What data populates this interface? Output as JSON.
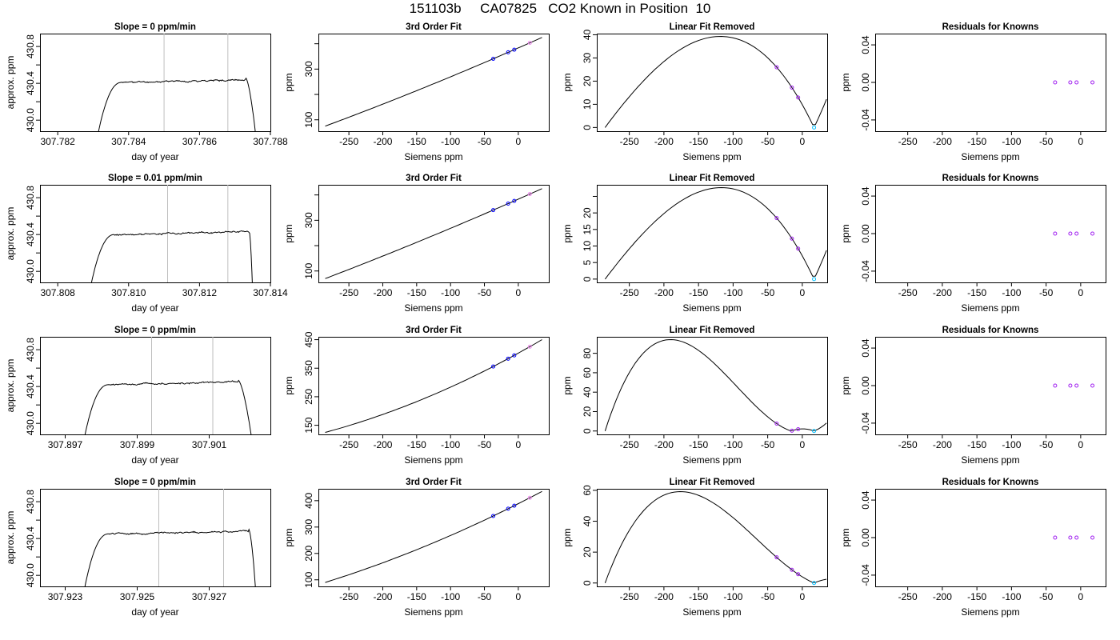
{
  "figure_title": "151103b     CA07825   CO2 Known in Position  10",
  "colors": {
    "axis": "#000000",
    "curve": "#000000",
    "marker_line": "#bebebe",
    "point_blue": "#0000ff",
    "point_purple": "#a020f0",
    "point_violet": "#ee82ee",
    "point_cyan": "#00bfff"
  },
  "chart_data": [
    {
      "type": "line",
      "row": 1,
      "title": "Slope =  0  ppm/min",
      "xlabel": "day of year",
      "ylabel": "approx. ppm",
      "xlim": [
        307.7815,
        307.788
      ],
      "ylim": [
        429.88,
        430.94
      ],
      "xticks": [
        307.782,
        307.784,
        307.786,
        307.788
      ],
      "xtick_labels": [
        "307.782",
        "307.784",
        "307.786",
        "307.788"
      ],
      "yticks": [
        430.0,
        430.2,
        430.4,
        430.6,
        430.8
      ],
      "ytick_labels": [
        "430.0",
        "",
        "430.4",
        "",
        "430.8"
      ],
      "trace": {
        "start": 307.7831,
        "end": 307.7876,
        "rise_end": 307.7838,
        "fall_start": 307.7873,
        "plateau": 430.41,
        "top": 430.46,
        "noise": 0.012,
        "seed": 11
      },
      "vlines": [
        307.785,
        307.7868
      ]
    },
    {
      "type": "line",
      "row": 1,
      "title": "3rd Order Fit",
      "xlabel": "Siemens ppm",
      "ylabel": "ppm",
      "xlim": [
        -295,
        45
      ],
      "ylim": [
        55,
        440
      ],
      "xticks": [
        -250,
        -200,
        -150,
        -100,
        -50,
        0
      ],
      "xtick_labels": [
        "-250",
        "-200",
        "-150",
        "-100",
        "-50",
        "0"
      ],
      "yticks": [
        100,
        200,
        300,
        400
      ],
      "ytick_labels": [
        "100",
        "",
        "300",
        ""
      ],
      "fit": {
        "x0": -285,
        "x1": 35,
        "y0": 75,
        "y1": 425,
        "curv": -8
      },
      "points": [
        {
          "x": -37,
          "color": "point_blue"
        },
        {
          "x": -15,
          "color": "point_blue"
        },
        {
          "x": -6,
          "color": "point_blue"
        },
        {
          "x": 17,
          "color": "point_violet"
        }
      ]
    },
    {
      "type": "line",
      "row": 1,
      "title": "Linear Fit Removed",
      "xlabel": "Siemens ppm",
      "ylabel": "ppm",
      "xlim": [
        -297,
        36
      ],
      "ylim": [
        -1.6,
        40.5
      ],
      "xticks": [
        -250,
        -200,
        -150,
        -100,
        -50,
        0
      ],
      "xtick_labels": [
        "-250",
        "-200",
        "-150",
        "-100",
        "-50",
        "0"
      ],
      "yticks": [
        0,
        10,
        20,
        30,
        40
      ],
      "ytick_labels": [
        "0",
        "10",
        "20",
        "30",
        "40"
      ],
      "resid": {
        "a": -0.00012,
        "b": -0.1,
        "x0": -285,
        "x1": 35,
        "rx0": -285,
        "rx1": 17
      },
      "points": [
        {
          "x": -37,
          "color": "point_purple"
        },
        {
          "x": -15,
          "color": "point_purple"
        },
        {
          "x": -6,
          "color": "point_purple"
        },
        {
          "x": 17,
          "color": "point_cyan"
        }
      ]
    },
    {
      "type": "scatter",
      "row": 1,
      "title": "Residuals for Knowns",
      "xlabel": "Siemens ppm",
      "ylabel": "ppm",
      "xlim": [
        -297,
        36
      ],
      "ylim": [
        -0.052,
        0.052
      ],
      "xticks": [
        -250,
        -200,
        -150,
        -100,
        -50,
        0
      ],
      "xtick_labels": [
        "-250",
        "-200",
        "-150",
        "-100",
        "-50",
        "0"
      ],
      "yticks": [
        -0.04,
        0.0,
        0.04
      ],
      "ytick_labels": [
        "-0.04",
        "0.00",
        "0.04"
      ],
      "points": [
        {
          "x": -37,
          "y": 0,
          "color": "point_purple"
        },
        {
          "x": -15,
          "y": 0,
          "color": "point_purple"
        },
        {
          "x": -6,
          "y": 0,
          "color": "point_purple"
        },
        {
          "x": 17,
          "y": 0,
          "color": "point_purple"
        }
      ]
    },
    {
      "type": "line",
      "row": 2,
      "title": "Slope =  0.01  ppm/min",
      "xlabel": "day of year",
      "ylabel": "approx. ppm",
      "xlim": [
        307.8075,
        307.814
      ],
      "ylim": [
        429.88,
        430.94
      ],
      "xticks": [
        307.808,
        307.81,
        307.812,
        307.814
      ],
      "xtick_labels": [
        "307.808",
        "307.810",
        "307.812",
        "307.814"
      ],
      "yticks": [
        430.0,
        430.2,
        430.4,
        430.6,
        430.8
      ],
      "ytick_labels": [
        "430.0",
        "",
        "430.4",
        "",
        "430.8"
      ],
      "trace": {
        "start": 307.8089,
        "end": 307.8135,
        "rise_end": 307.8096,
        "fall_start": 307.8134,
        "plateau": 430.4,
        "top": 430.45,
        "noise": 0.012,
        "seed": 22
      },
      "vlines": [
        307.8111,
        307.8128
      ]
    },
    {
      "type": "line",
      "row": 2,
      "title": "3rd Order Fit",
      "xlabel": "Siemens ppm",
      "ylabel": "ppm",
      "xlim": [
        -295,
        45
      ],
      "ylim": [
        55,
        440
      ],
      "xticks": [
        -250,
        -200,
        -150,
        -100,
        -50,
        0
      ],
      "xtick_labels": [
        "-250",
        "-200",
        "-150",
        "-100",
        "-50",
        "0"
      ],
      "yticks": [
        100,
        200,
        300,
        400
      ],
      "ytick_labels": [
        "100",
        "",
        "300",
        ""
      ],
      "fit": {
        "x0": -285,
        "x1": 35,
        "y0": 70,
        "y1": 425,
        "curv": -7
      },
      "points": [
        {
          "x": -37,
          "color": "point_blue"
        },
        {
          "x": -15,
          "color": "point_blue"
        },
        {
          "x": -6,
          "color": "point_blue"
        },
        {
          "x": 17,
          "color": "point_violet"
        }
      ]
    },
    {
      "type": "line",
      "row": 2,
      "title": "Linear Fit Removed",
      "xlabel": "Siemens ppm",
      "ylabel": "ppm",
      "xlim": [
        -297,
        36
      ],
      "ylim": [
        -1,
        28.5
      ],
      "xticks": [
        -250,
        -200,
        -150,
        -100,
        -50,
        0
      ],
      "xtick_labels": [
        "-250",
        "-200",
        "-150",
        "-100",
        "-50",
        "0"
      ],
      "yticks": [
        0,
        5,
        10,
        15,
        20,
        25
      ],
      "ytick_labels": [
        "0",
        "5",
        "10",
        "15",
        "20",
        ""
      ],
      "resid": {
        "a": -0.00018,
        "b": -0.14,
        "x0": -285,
        "x1": 35,
        "rx0": -285,
        "rx1": 17
      },
      "points": [
        {
          "x": -37,
          "color": "point_purple"
        },
        {
          "x": -15,
          "color": "point_purple"
        },
        {
          "x": -6,
          "color": "point_purple"
        },
        {
          "x": 17,
          "color": "point_cyan"
        }
      ]
    },
    {
      "type": "scatter",
      "row": 2,
      "title": "Residuals for Knowns",
      "xlabel": "Siemens ppm",
      "ylabel": "ppm",
      "xlim": [
        -297,
        36
      ],
      "ylim": [
        -0.052,
        0.052
      ],
      "xticks": [
        -250,
        -200,
        -150,
        -100,
        -50,
        0
      ],
      "xtick_labels": [
        "-250",
        "-200",
        "-150",
        "-100",
        "-50",
        "0"
      ],
      "yticks": [
        -0.04,
        0.0,
        0.04
      ],
      "ytick_labels": [
        "-0.04",
        "0.00",
        "0.04"
      ],
      "points": [
        {
          "x": -37,
          "y": 0,
          "color": "point_purple"
        },
        {
          "x": -15,
          "y": 0,
          "color": "point_purple"
        },
        {
          "x": -6,
          "y": 0,
          "color": "point_purple"
        },
        {
          "x": 17,
          "y": 0,
          "color": "point_purple"
        }
      ]
    },
    {
      "type": "line",
      "row": 3,
      "title": "Slope =  0  ppm/min",
      "xlabel": "day of year",
      "ylabel": "approx. ppm",
      "xlim": [
        307.8963,
        307.9027
      ],
      "ylim": [
        429.88,
        430.94
      ],
      "xticks": [
        307.897,
        307.899,
        307.901
      ],
      "xtick_labels": [
        "307.897",
        "307.899",
        "307.901"
      ],
      "yticks": [
        430.0,
        430.2,
        430.4,
        430.6,
        430.8
      ],
      "ytick_labels": [
        "430.0",
        "",
        "430.4",
        "",
        "430.8"
      ],
      "trace": {
        "start": 307.8975,
        "end": 307.9022,
        "rise_end": 307.8982,
        "fall_start": 307.9018,
        "plateau": 430.42,
        "top": 430.47,
        "noise": 0.012,
        "seed": 33
      },
      "vlines": [
        307.8994,
        307.9011
      ]
    },
    {
      "type": "line",
      "row": 3,
      "title": "3rd Order Fit",
      "xlabel": "Siemens ppm",
      "ylabel": "ppm",
      "xlim": [
        -295,
        45
      ],
      "ylim": [
        118,
        460
      ],
      "xticks": [
        -250,
        -200,
        -150,
        -100,
        -50,
        0
      ],
      "xtick_labels": [
        "-250",
        "-200",
        "-150",
        "-100",
        "-50",
        "0"
      ],
      "yticks": [
        150,
        250,
        350,
        450
      ],
      "ytick_labels": [
        "150",
        "250",
        "350",
        "450"
      ],
      "fit": {
        "x0": -285,
        "x1": 35,
        "y0": 125,
        "y1": 450,
        "curv": -30
      },
      "points": [
        {
          "x": -37,
          "color": "point_blue"
        },
        {
          "x": -15,
          "color": "point_blue"
        },
        {
          "x": -6,
          "color": "point_blue"
        },
        {
          "x": 17,
          "color": "point_violet"
        }
      ]
    },
    {
      "type": "line",
      "row": 3,
      "title": "Linear Fit Removed",
      "xlabel": "Siemens ppm",
      "ylabel": "ppm",
      "xlim": [
        -297,
        36
      ],
      "ylim": [
        -3.5,
        97
      ],
      "xticks": [
        -250,
        -200,
        -150,
        -100,
        -50,
        0
      ],
      "xtick_labels": [
        "-250",
        "-200",
        "-150",
        "-100",
        "-50",
        "0"
      ],
      "yticks": [
        0,
        20,
        40,
        60,
        80
      ],
      "ytick_labels": [
        "0",
        "20",
        "40",
        "60",
        "80"
      ],
      "resid": {
        "a": 0.00122,
        "b": 0.02,
        "x0": -285,
        "x1": 35,
        "rx0": -285,
        "rx1": 17
      },
      "points": [
        {
          "x": -37,
          "color": "point_purple"
        },
        {
          "x": -15,
          "color": "point_purple"
        },
        {
          "x": -6,
          "color": "point_purple"
        },
        {
          "x": 17,
          "color": "point_cyan"
        }
      ]
    },
    {
      "type": "scatter",
      "row": 3,
      "title": "Residuals for Knowns",
      "xlabel": "Siemens ppm",
      "ylabel": "ppm",
      "xlim": [
        -297,
        36
      ],
      "ylim": [
        -0.052,
        0.052
      ],
      "xticks": [
        -250,
        -200,
        -150,
        -100,
        -50,
        0
      ],
      "xtick_labels": [
        "-250",
        "-200",
        "-150",
        "-100",
        "-50",
        "0"
      ],
      "yticks": [
        -0.04,
        0.0,
        0.04
      ],
      "ytick_labels": [
        "-0.04",
        "0.00",
        "0.04"
      ],
      "points": [
        {
          "x": -37,
          "y": 0,
          "color": "point_purple"
        },
        {
          "x": -15,
          "y": 0,
          "color": "point_purple"
        },
        {
          "x": -6,
          "y": 0,
          "color": "point_purple"
        },
        {
          "x": 17,
          "y": 0,
          "color": "point_purple"
        }
      ]
    },
    {
      "type": "line",
      "row": 4,
      "title": "Slope =  0  ppm/min",
      "xlabel": "day of year",
      "ylabel": "approx. ppm",
      "xlim": [
        307.9223,
        307.9287
      ],
      "ylim": [
        429.88,
        430.94
      ],
      "xticks": [
        307.923,
        307.925,
        307.927
      ],
      "xtick_labels": [
        "307.923",
        "307.925",
        "307.927"
      ],
      "yticks": [
        430.0,
        430.2,
        430.4,
        430.6,
        430.8
      ],
      "ytick_labels": [
        "430.0",
        "",
        "430.4",
        "",
        "430.8"
      ],
      "trace": {
        "start": 307.9235,
        "end": 307.9283,
        "rise_end": 307.9242,
        "fall_start": 307.9281,
        "plateau": 430.45,
        "top": 430.5,
        "noise": 0.012,
        "seed": 44
      },
      "vlines": [
        307.9256,
        307.9274
      ]
    },
    {
      "type": "line",
      "row": 4,
      "title": "3rd Order Fit",
      "xlabel": "Siemens ppm",
      "ylabel": "ppm",
      "xlim": [
        -295,
        45
      ],
      "ylim": [
        75,
        445
      ],
      "xticks": [
        -250,
        -200,
        -150,
        -100,
        -50,
        0
      ],
      "xtick_labels": [
        "-250",
        "-200",
        "-150",
        "-100",
        "-50",
        "0"
      ],
      "yticks": [
        100,
        200,
        300,
        400
      ],
      "ytick_labels": [
        "100",
        "200",
        "300",
        "400"
      ],
      "fit": {
        "x0": -285,
        "x1": 35,
        "y0": 90,
        "y1": 435,
        "curv": -22
      },
      "points": [
        {
          "x": -37,
          "color": "point_blue"
        },
        {
          "x": -15,
          "color": "point_blue"
        },
        {
          "x": -6,
          "color": "point_blue"
        },
        {
          "x": 17,
          "color": "point_violet"
        }
      ]
    },
    {
      "type": "line",
      "row": 4,
      "title": "Linear Fit Removed",
      "xlabel": "Siemens ppm",
      "ylabel": "ppm",
      "xlim": [
        -297,
        36
      ],
      "ylim": [
        -2.2,
        61
      ],
      "xticks": [
        -250,
        -200,
        -150,
        -100,
        -50,
        0
      ],
      "xtick_labels": [
        "-250",
        "-200",
        "-150",
        "-100",
        "-50",
        "0"
      ],
      "yticks": [
        0,
        20,
        40,
        60
      ],
      "ytick_labels": [
        "0",
        "20",
        "40",
        "60"
      ],
      "resid": {
        "a": 0.00055,
        "b": -0.04,
        "x0": -285,
        "x1": 35,
        "rx0": -285,
        "rx1": 17
      },
      "points": [
        {
          "x": -37,
          "color": "point_purple"
        },
        {
          "x": -15,
          "color": "point_purple"
        },
        {
          "x": -6,
          "color": "point_purple"
        },
        {
          "x": 17,
          "color": "point_cyan"
        }
      ]
    },
    {
      "type": "scatter",
      "row": 4,
      "title": "Residuals for Knowns",
      "xlabel": "Siemens ppm",
      "ylabel": "ppm",
      "xlim": [
        -297,
        36
      ],
      "ylim": [
        -0.052,
        0.052
      ],
      "xticks": [
        -250,
        -200,
        -150,
        -100,
        -50,
        0
      ],
      "xtick_labels": [
        "-250",
        "-200",
        "-150",
        "-100",
        "-50",
        "0"
      ],
      "yticks": [
        -0.04,
        0.0,
        0.04
      ],
      "ytick_labels": [
        "-0.04",
        "0.00",
        "0.04"
      ],
      "points": [
        {
          "x": -37,
          "y": 0,
          "color": "point_purple"
        },
        {
          "x": -15,
          "y": 0,
          "color": "point_purple"
        },
        {
          "x": -6,
          "y": 0,
          "color": "point_purple"
        },
        {
          "x": 17,
          "y": 0,
          "color": "point_purple"
        }
      ]
    }
  ]
}
